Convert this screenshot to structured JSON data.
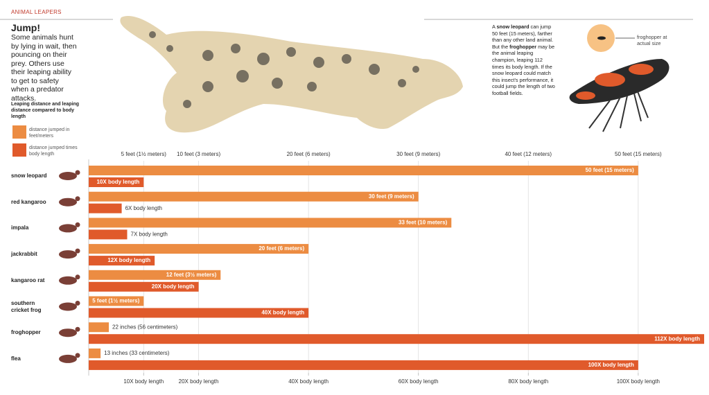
{
  "header": "ANIMAL LEAPERS",
  "title": "Jump!",
  "intro": "Some animals hunt by lying in wait, then pouncing on their prey. Others use their leaping ability to get to safety when a predator attacks.",
  "annotation": [
    "A ",
    "snow leopard",
    " can jump 50 feet (15 meters), farther than any other land animal. But the ",
    "froghopper",
    " may be the animal leaping champion, leaping 112 times its body length. If the snow leopard could match this insect's performance, it could jump the length of two football fields."
  ],
  "inset_label": "froghopper at actual size",
  "chart_data": {
    "type": "bar",
    "legend_title": "Leaping distance and leaping distance compared to body length",
    "categories": [
      "snow leopard",
      "red kangaroo",
      "impala",
      "jackrabbit",
      "kangaroo rat",
      "southern cricket frog",
      "froghopper",
      "flea"
    ],
    "series": [
      {
        "name": "distance jumped in feet/meters",
        "color": "#ec8c42",
        "axis": "x",
        "values": [
          50,
          30,
          33,
          20,
          12,
          5,
          1.83,
          1.08
        ],
        "value_labels": [
          "50 feet (15 meters)",
          "30 feet (9 meters)",
          "33 feet (10 meters)",
          "20 feet (6 meters)",
          "12 feet (3½ meters)",
          "5 feet (1½ meters)",
          "22 inches (56 centimeters)",
          "13 inches (33 centimeters)"
        ]
      },
      {
        "name": "distance jumped times body length",
        "color": "#e05a2b",
        "axis": "x2",
        "values": [
          10,
          6,
          7,
          12,
          20,
          40,
          112,
          100
        ],
        "value_labels": [
          "10X body length",
          "6X body length",
          "7X body length",
          "12X body length",
          "20X body length",
          "40X body length",
          "112X body length",
          "100X body length"
        ]
      }
    ],
    "xlim": [
      0,
      56
    ],
    "xticks": [
      {
        "value": 5,
        "label": "5 feet (1½ meters)"
      },
      {
        "value": 10,
        "label": "10 feet (3 meters)"
      },
      {
        "value": 20,
        "label": "20 feet (6 meters)"
      },
      {
        "value": 30,
        "label": "30 feet (9 meters)"
      },
      {
        "value": 40,
        "label": "40 feet (12 meters)"
      },
      {
        "value": 50,
        "label": "50 feet (15 meters)"
      }
    ],
    "x2lim": [
      0,
      112
    ],
    "x2ticks": [
      {
        "value": 10,
        "label": "10X body length"
      },
      {
        "value": 20,
        "label": "20X body length"
      },
      {
        "value": 40,
        "label": "40X body length"
      },
      {
        "value": 60,
        "label": "60X body length"
      },
      {
        "value": 80,
        "label": "80X body length"
      },
      {
        "value": 100,
        "label": "100X body length"
      }
    ],
    "grid": true
  }
}
